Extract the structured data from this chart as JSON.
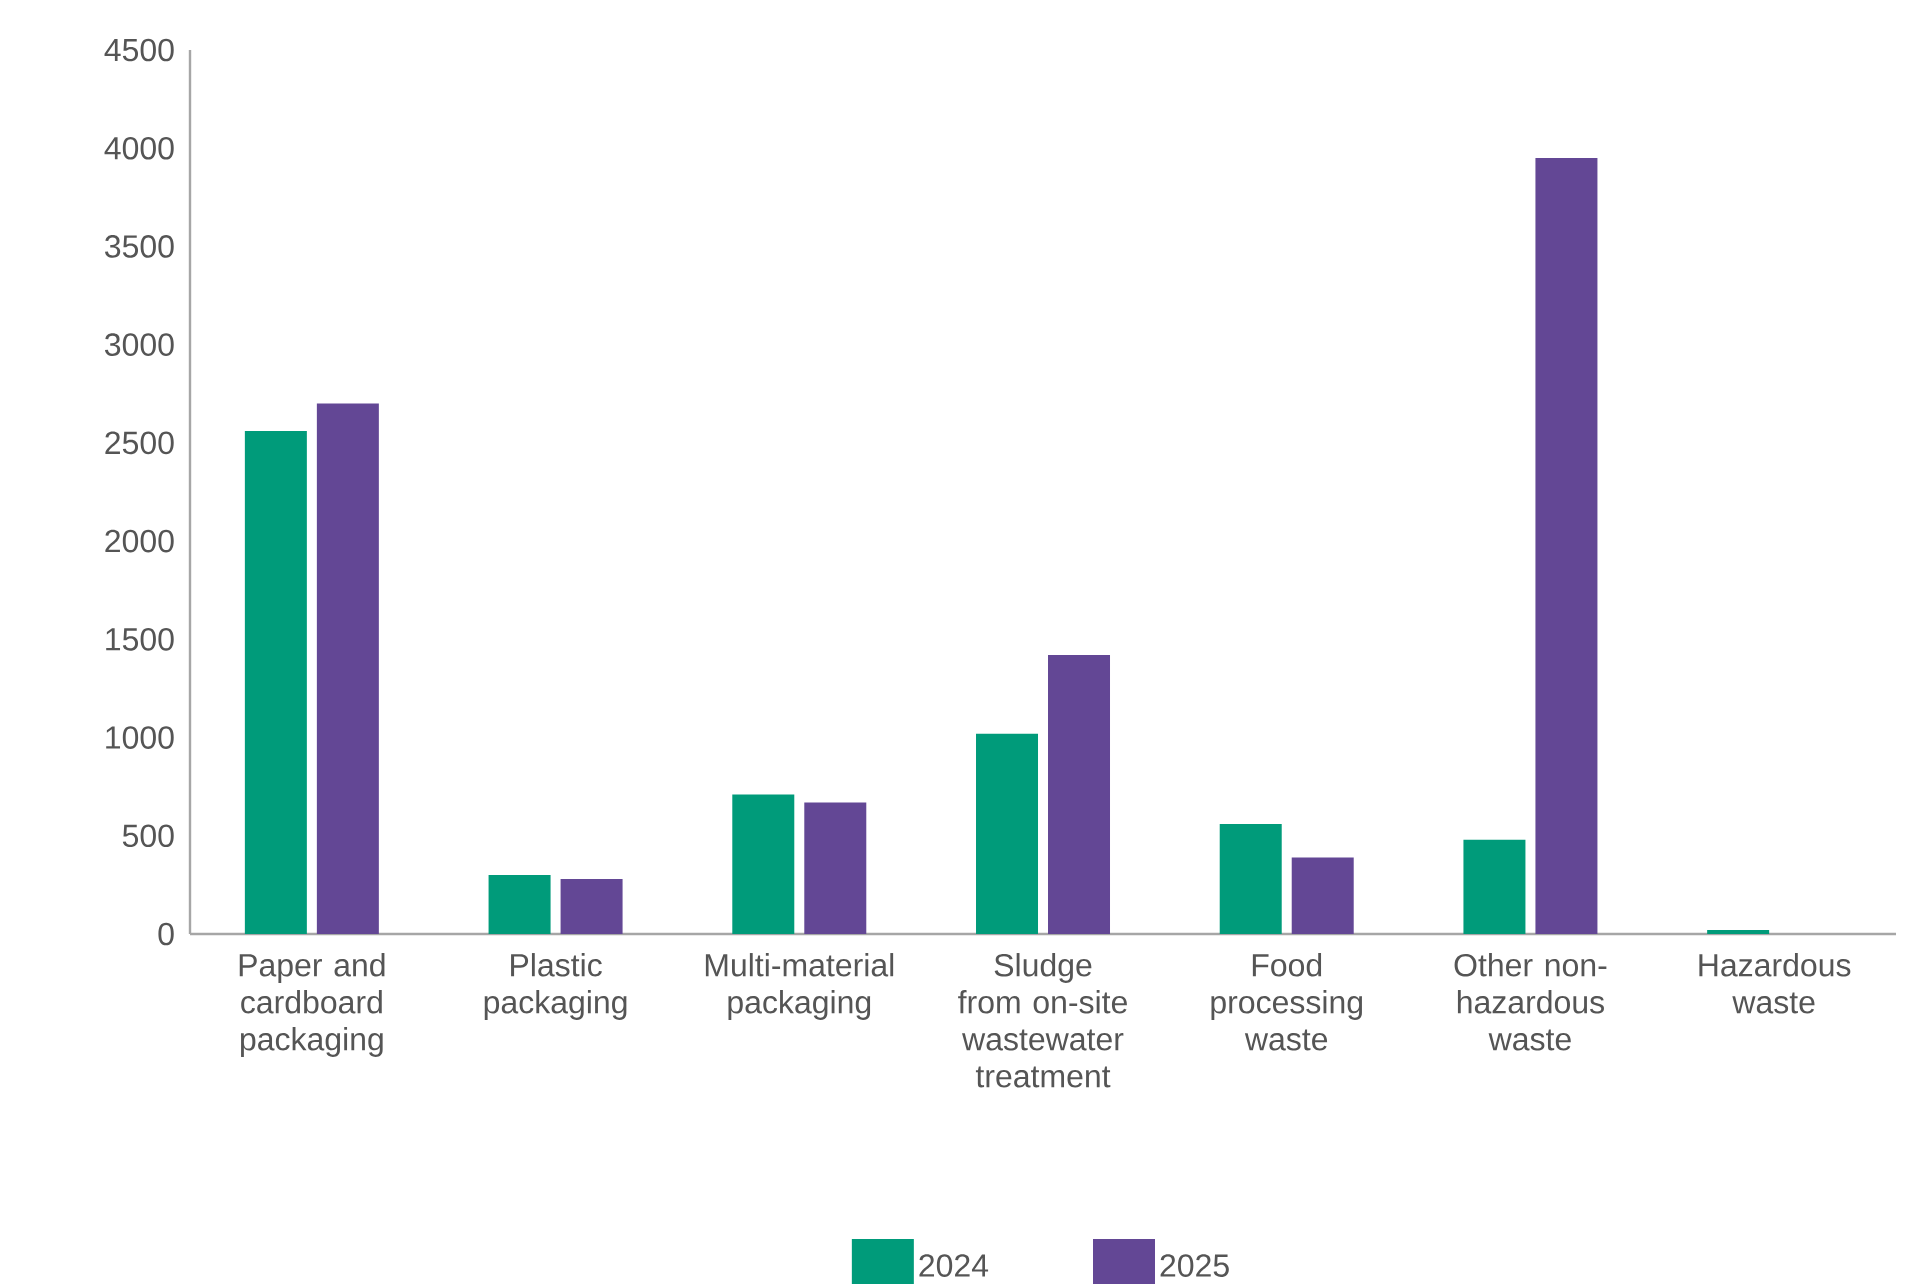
{
  "chart_data": {
    "type": "bar",
    "categories": [
      "Paper and cardboard packaging",
      "Plastic packaging",
      "Multi-material packaging",
      "Sludge from on-site wastewater treatment",
      "Food processing waste",
      "Other non-hazardous waste",
      "Hazardous waste"
    ],
    "series": [
      {
        "name": "2024",
        "color": "#009b7a",
        "values": [
          2560,
          300,
          710,
          1020,
          560,
          480,
          20
        ]
      },
      {
        "name": "2025",
        "color": "#634795",
        "values": [
          2700,
          280,
          670,
          1420,
          390,
          3950,
          0
        ]
      }
    ],
    "ylim": [
      0,
      4500
    ],
    "yticks": [
      0,
      500,
      1000,
      1500,
      2000,
      2500,
      3000,
      3500,
      4000,
      4500
    ],
    "legend": "bottom"
  }
}
